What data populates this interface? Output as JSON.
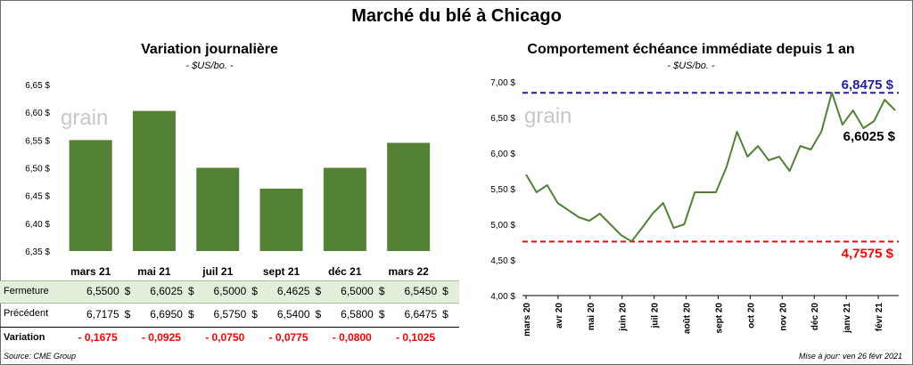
{
  "title": "Marché du blé à Chicago",
  "left": {
    "title": "Variation journalière",
    "unit": "- $US/bo. -",
    "watermark": "grain",
    "yticks": [
      "6,65 $",
      "6,60 $",
      "6,55 $",
      "6,50 $",
      "6,45 $",
      "6,40 $",
      "6,35 $"
    ],
    "table": {
      "currency": "$",
      "rows": [
        {
          "label": "Fermeture",
          "values": [
            "6,5500",
            "6,6025",
            "6,5000",
            "6,4625",
            "6,5000",
            "6,5450"
          ]
        },
        {
          "label": "Précédent",
          "values": [
            "6,7175",
            "6,6950",
            "6,5750",
            "6,5400",
            "6,5800",
            "6,6475"
          ]
        },
        {
          "label": "Variation",
          "values": [
            "- 0,1675",
            "- 0,0925",
            "- 0,0750",
            "- 0,0775",
            "- 0,0800",
            "- 0,1025"
          ]
        }
      ]
    }
  },
  "right": {
    "title": "Comportement  échéance immédiate depuis 1 an",
    "unit": "- $US/bo. -",
    "watermark": "grain",
    "yticks": [
      "7,00 $",
      "6,50 $",
      "6,00 $",
      "5,50 $",
      "5,00 $",
      "4,50 $",
      "4,00 $"
    ],
    "xticks": [
      "mars 20",
      "avr 20",
      "mai 20",
      "juin 20",
      "juil 20",
      "août 20",
      "sept 20",
      "oct 20",
      "nov 20",
      "déc 20",
      "janv 21",
      "févr 21"
    ],
    "high_label": "6,8475 $",
    "low_label": "4,7575 $",
    "last_label": "6,6025 $"
  },
  "colors": {
    "bar": "#548235",
    "line": "#548235",
    "high": "#1f1fa8",
    "low": "#ff0000",
    "fermeture_bg": "#e2efda",
    "negative": "#ff0000"
  },
  "chart_data": [
    {
      "type": "bar",
      "title": "Variation journalière",
      "ylabel": "$US/bo.",
      "categories": [
        "mars 21",
        "mai 21",
        "juil 21",
        "sept 21",
        "déc 21",
        "mars 22"
      ],
      "values": [
        6.55,
        6.6025,
        6.5,
        6.4625,
        6.5,
        6.545
      ],
      "ylim": [
        6.35,
        6.65
      ],
      "grid": false
    },
    {
      "type": "line",
      "title": "Comportement  échéance immédiate depuis 1 an",
      "ylabel": "$US/bo.",
      "x": [
        "mars 20",
        "mars 20",
        "mars 20",
        "avr 20",
        "avr 20",
        "avr 20",
        "mai 20",
        "mai 20",
        "mai 20",
        "juin 20",
        "juin 20",
        "juin 20",
        "juil 20",
        "juil 20",
        "juil 20",
        "août 20",
        "août 20",
        "août 20",
        "sept 20",
        "sept 20",
        "sept 20",
        "oct 20",
        "oct 20",
        "oct 20",
        "nov 20",
        "nov 20",
        "nov 20",
        "déc 20",
        "déc 20",
        "déc 20",
        "janv 21",
        "janv 21",
        "janv 21",
        "févr 21",
        "févr 21",
        "févr 21"
      ],
      "values": [
        5.7,
        5.45,
        5.55,
        5.3,
        5.2,
        5.1,
        5.05,
        5.15,
        5.0,
        4.85,
        4.76,
        4.95,
        5.15,
        5.3,
        4.95,
        5.0,
        5.45,
        5.45,
        5.45,
        5.8,
        6.3,
        5.95,
        6.1,
        5.9,
        5.95,
        5.75,
        6.1,
        6.05,
        6.3,
        6.85,
        6.4,
        6.6,
        6.35,
        6.45,
        6.75,
        6.6
      ],
      "high": 6.8475,
      "low": 4.7575,
      "ylim": [
        4.0,
        7.0
      ],
      "grid": false
    }
  ]
}
